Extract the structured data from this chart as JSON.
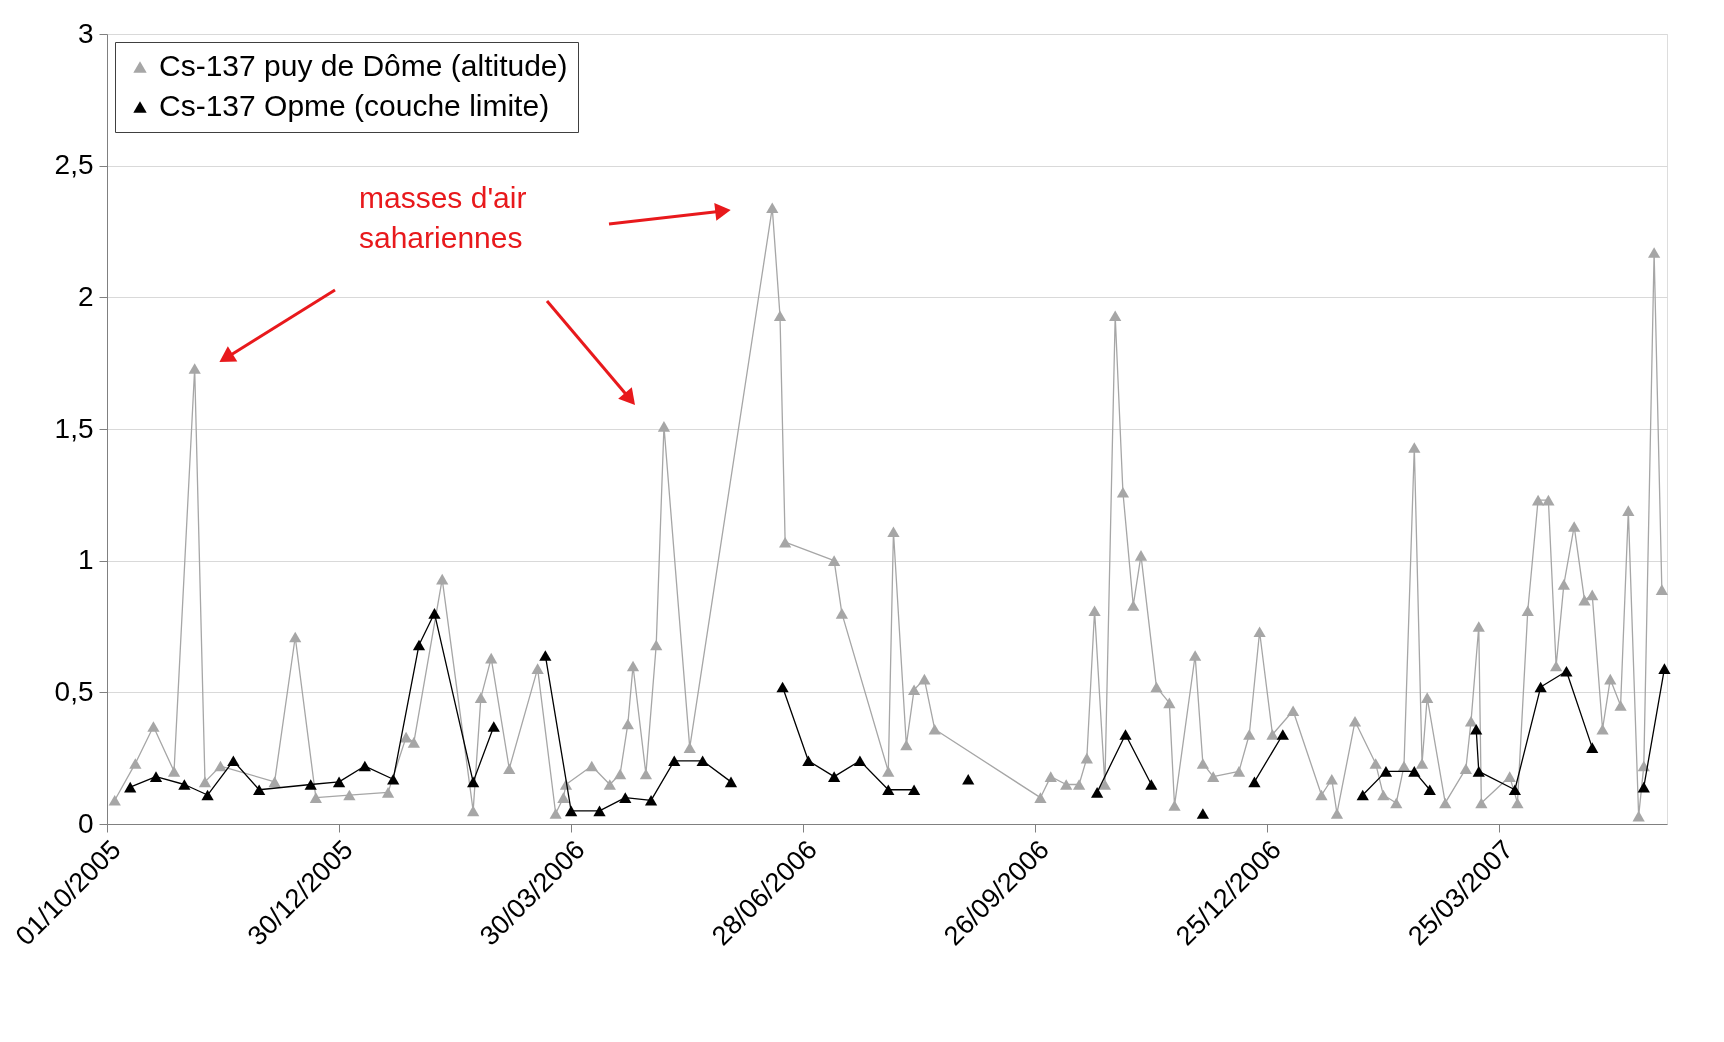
{
  "chart_data": {
    "type": "line",
    "marker": "triangle",
    "line_style": "solid",
    "grid": "y",
    "legend": "top left",
    "annotations": [
      "masses d'air\nsahariennes"
    ],
    "xlim": [
      "2005-10-01",
      "2007-05-29"
    ],
    "xticks": [
      {
        "value": "2005-10-01",
        "label": "01/10/2005"
      },
      {
        "value": "2005-12-30",
        "label": "30/12/2005"
      },
      {
        "value": "2006-03-30",
        "label": "30/03/2006"
      },
      {
        "value": "2006-06-28",
        "label": "28/06/2006"
      },
      {
        "value": "2006-09-26",
        "label": "26/09/2006"
      },
      {
        "value": "2006-12-25",
        "label": "25/12/2006"
      },
      {
        "value": "2007-03-25",
        "label": "25/03/2007"
      }
    ],
    "ylim": [
      0,
      3
    ],
    "yticks": [
      0,
      {
        "value": 0.5,
        "label": "0,5"
      },
      1,
      {
        "value": 1.5,
        "label": "1,5"
      },
      2,
      {
        "value": 2.5,
        "label": "2,5"
      },
      3
    ],
    "series": [
      {
        "name": "Cs-137 puy de Dôme (altitude)",
        "color": "#a6a6a6",
        "x": [
          "2005-10-04",
          "2005-10-12",
          "2005-10-19",
          "2005-10-27",
          "2005-11-04",
          "2005-11-08",
          "2005-11-14",
          "2005-12-05",
          "2005-12-13",
          "2005-12-21",
          "2006-01-03",
          "2006-01-18",
          "2006-01-25",
          "2006-01-28",
          "2006-02-08",
          "2006-02-20",
          "2006-02-23",
          "2006-02-27",
          "2006-03-06",
          "2006-03-17",
          "2006-03-24",
          "2006-03-27",
          "2006-03-28",
          "2006-04-07",
          "2006-04-14",
          "2006-04-18",
          "2006-04-21",
          "2006-04-23",
          "2006-04-28",
          "2006-05-02",
          "2006-05-05",
          "2006-05-15",
          "2006-06-16",
          "2006-06-19",
          "2006-06-21",
          "2006-07-10",
          "2006-07-13",
          "2006-07-31",
          "2006-08-02",
          "2006-08-07",
          "2006-08-10",
          "2006-08-14",
          "2006-08-18",
          "2006-09-28",
          "2006-10-02",
          "2006-10-08",
          "2006-10-13",
          "2006-10-16",
          "2006-10-19",
          "2006-10-23",
          "2006-10-27",
          "2006-10-30",
          "2006-11-03",
          "2006-11-06",
          "2006-11-12",
          "2006-11-17",
          "2006-11-19",
          "2006-11-27",
          "2006-11-30",
          "2006-12-04",
          "2006-12-14",
          "2006-12-18",
          "2006-12-22",
          "2006-12-27",
          "2007-01-04",
          "2007-01-15",
          "2007-01-19",
          "2007-01-21",
          "2007-01-28",
          "2007-02-05",
          "2007-02-08",
          "2007-02-13",
          "2007-02-16",
          "2007-02-20",
          "2007-02-23",
          "2007-02-25",
          "2007-03-04",
          "2007-03-12",
          "2007-03-14",
          "2007-03-17",
          "2007-03-18",
          "2007-03-29",
          "2007-04-01",
          "2007-04-05",
          "2007-04-09",
          "2007-04-13",
          "2007-04-16",
          "2007-04-19",
          "2007-04-23",
          "2007-04-27",
          "2007-04-30",
          "2007-05-04",
          "2007-05-07",
          "2007-05-11",
          "2007-05-14",
          "2007-05-18",
          "2007-05-20",
          "2007-05-24",
          "2007-05-27"
        ],
        "values": [
          0.09,
          0.23,
          0.37,
          0.2,
          1.73,
          0.16,
          0.22,
          0.16,
          0.71,
          0.1,
          0.11,
          0.12,
          0.33,
          0.31,
          0.93,
          0.05,
          0.48,
          0.63,
          0.21,
          0.59,
          0.04,
          0.1,
          0.15,
          0.22,
          0.15,
          0.19,
          0.38,
          0.6,
          0.19,
          0.68,
          1.51,
          0.29,
          2.34,
          1.93,
          1.07,
          1.0,
          0.8,
          0.2,
          1.11,
          0.3,
          0.51,
          0.55,
          0.36,
          0.1,
          0.18,
          0.15,
          0.15,
          0.25,
          0.81,
          0.15,
          1.93,
          1.26,
          0.83,
          1.02,
          0.52,
          0.46,
          0.07,
          0.64,
          0.23,
          0.18,
          0.2,
          0.34,
          0.73,
          0.34,
          0.43,
          0.11,
          0.17,
          0.04,
          0.39,
          0.23,
          0.11,
          0.08,
          0.22,
          1.43,
          0.23,
          0.48,
          0.08,
          0.21,
          0.39,
          0.75,
          0.08,
          0.18,
          0.08,
          0.81,
          1.23,
          1.23,
          0.6,
          0.91,
          1.13,
          0.85,
          0.87,
          0.36,
          0.55,
          0.45,
          1.19,
          0.03,
          0.22,
          2.17,
          0.89
        ]
      },
      {
        "name": "Cs-137 Opme (couche limite)",
        "color": "#000000",
        "x": [
          "2005-10-10",
          "2005-10-20",
          "2005-10-31",
          "2005-11-09",
          "2005-11-19",
          "2005-11-29",
          "2005-12-19",
          "2005-12-30",
          "2006-01-09",
          "2006-01-20",
          "2006-01-30",
          "2006-02-05",
          "2006-02-20",
          "2006-02-28",
          "2006-03-10",
          "2006-03-20",
          "2006-03-30",
          "2006-04-10",
          "2006-04-20",
          "2006-04-30",
          "2006-05-09",
          "2006-05-20",
          "2006-05-31",
          "2006-06-10",
          "2006-06-20",
          "2006-06-30",
          "2006-07-10",
          "2006-07-20",
          "2006-07-31",
          "2006-08-10",
          "2006-08-20",
          "2006-08-31",
          "2006-09-20",
          "2006-10-20",
          "2006-10-31",
          "2006-11-10",
          "2006-11-20",
          "2006-11-30",
          "2006-12-10",
          "2006-12-20",
          "2006-12-31",
          "2007-01-15",
          "2007-01-31",
          "2007-02-09",
          "2007-02-20",
          "2007-02-26",
          "2007-03-06",
          "2007-03-16",
          "2007-03-17",
          "2007-03-31",
          "2007-04-10",
          "2007-04-20",
          "2007-04-30",
          "2007-05-10",
          "2007-05-20",
          "2007-05-28"
        ],
        "values": [
          0.14,
          0.18,
          0.15,
          0.11,
          0.24,
          0.13,
          0.15,
          0.16,
          0.22,
          0.17,
          0.68,
          0.8,
          0.16,
          0.37,
          null,
          0.64,
          0.05,
          0.05,
          0.1,
          0.09,
          0.24,
          0.24,
          0.16,
          null,
          0.52,
          0.24,
          0.18,
          0.24,
          0.13,
          0.13,
          null,
          0.17,
          null,
          0.12,
          0.34,
          0.15,
          null,
          0.04,
          null,
          0.16,
          0.34,
          null,
          0.11,
          0.2,
          0.2,
          0.13,
          null,
          0.36,
          0.2,
          0.13,
          0.52,
          0.58,
          0.29,
          null,
          0.14,
          0.59
        ]
      }
    ]
  }
}
